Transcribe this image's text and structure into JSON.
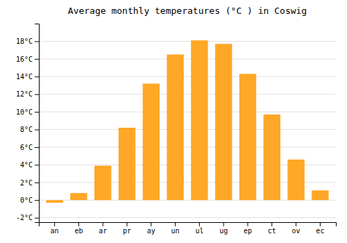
{
  "chart_data": {
    "type": "bar",
    "title": "Average monthly temperatures (°C ) in Coswig",
    "categories": [
      "an",
      "eb",
      "ar",
      "pr",
      "ay",
      "un",
      "ul",
      "ug",
      "ep",
      "ct",
      "ov",
      "ec"
    ],
    "values": [
      -0.3,
      0.8,
      3.9,
      8.2,
      13.2,
      16.5,
      18.1,
      17.7,
      14.3,
      9.7,
      4.6,
      1.1
    ],
    "color": "#FFA726",
    "ylim": [
      -2.5,
      20
    ],
    "yticks": [
      {
        "value": -2,
        "label": "-2°C"
      },
      {
        "value": 0,
        "label": "0°C"
      },
      {
        "value": 2,
        "label": "2°C"
      },
      {
        "value": 4,
        "label": "4°C"
      },
      {
        "value": 6,
        "label": "6°C"
      },
      {
        "value": 8,
        "label": "8°C"
      },
      {
        "value": 10,
        "label": "10°C"
      },
      {
        "value": 12,
        "label": "12°C"
      },
      {
        "value": 14,
        "label": "14°C"
      },
      {
        "value": 16,
        "label": "16°C"
      },
      {
        "value": 18,
        "label": "18°C"
      }
    ],
    "grid": true
  }
}
